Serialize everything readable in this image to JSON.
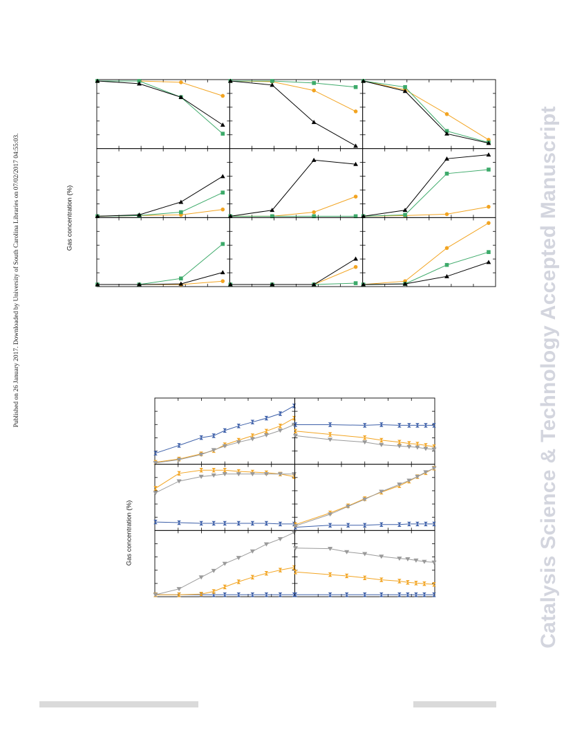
{
  "side_note": "Published on 26 January 2017. Downloaded by University of South Carolina Libraries on 07/02/2017 04:55:03.",
  "watermark": "Catalysis Science & Technology Accepted Manuscript",
  "colors": {
    "black": "#000000",
    "green": "#3daa6a",
    "orange": "#f2a421",
    "blue": "#3b5ea8",
    "gray": "#9a9a9a"
  },
  "chart_data": [
    {
      "type": "line",
      "name": "figure-top",
      "ylabel": "Gas concentration (%)",
      "layout": "3x3 grid of panels, no tick labels visible",
      "x": [
        0,
        1,
        2,
        3
      ],
      "xlim": [
        0,
        3.15
      ],
      "ylim": [
        0,
        1
      ],
      "panels": [
        {
          "row": 0,
          "col": 0,
          "series": [
            {
              "color": "orange",
              "marker": "circle",
              "values": [
                0.99,
                0.99,
                0.97,
                0.77
              ]
            },
            {
              "color": "green",
              "marker": "square",
              "values": [
                0.99,
                0.99,
                0.75,
                0.21
              ]
            },
            {
              "color": "black",
              "marker": "triangle",
              "values": [
                0.99,
                0.95,
                0.75,
                0.34
              ]
            }
          ]
        },
        {
          "row": 0,
          "col": 1,
          "series": [
            {
              "color": "orange",
              "marker": "circle",
              "values": [
                0.99,
                0.98,
                0.85,
                0.54
              ]
            },
            {
              "color": "green",
              "marker": "square",
              "values": [
                0.99,
                0.99,
                0.96,
                0.9
              ]
            },
            {
              "color": "black",
              "marker": "triangle",
              "values": [
                0.99,
                0.93,
                0.38,
                0.03
              ]
            }
          ]
        },
        {
          "row": 0,
          "col": 2,
          "series": [
            {
              "color": "orange",
              "marker": "circle",
              "values": [
                0.99,
                0.86,
                0.5,
                0.12
              ]
            },
            {
              "color": "green",
              "marker": "square",
              "values": [
                0.99,
                0.9,
                0.25,
                0.08
              ]
            },
            {
              "color": "black",
              "marker": "triangle",
              "values": [
                0.99,
                0.84,
                0.21,
                0.07
              ]
            }
          ]
        },
        {
          "row": 1,
          "col": 0,
          "series": [
            {
              "color": "orange",
              "marker": "circle",
              "values": [
                0.01,
                0.02,
                0.03,
                0.11
              ]
            },
            {
              "color": "green",
              "marker": "square",
              "values": [
                0.01,
                0.02,
                0.07,
                0.36
              ]
            },
            {
              "color": "black",
              "marker": "triangle",
              "values": [
                0.01,
                0.03,
                0.22,
                0.6
              ]
            }
          ]
        },
        {
          "row": 1,
          "col": 1,
          "series": [
            {
              "color": "orange",
              "marker": "circle",
              "values": [
                0.01,
                0.01,
                0.07,
                0.3
              ]
            },
            {
              "color": "green",
              "marker": "square",
              "values": [
                0.01,
                0.01,
                0.01,
                0.01
              ]
            },
            {
              "color": "black",
              "marker": "triangle",
              "values": [
                0.01,
                0.1,
                0.84,
                0.78
              ]
            }
          ]
        },
        {
          "row": 1,
          "col": 2,
          "series": [
            {
              "color": "orange",
              "marker": "circle",
              "values": [
                0.01,
                0.02,
                0.04,
                0.15
              ]
            },
            {
              "color": "green",
              "marker": "square",
              "values": [
                0.01,
                0.03,
                0.64,
                0.7
              ]
            },
            {
              "color": "black",
              "marker": "triangle",
              "values": [
                0.01,
                0.1,
                0.86,
                0.92
              ]
            }
          ]
        },
        {
          "row": 2,
          "col": 0,
          "series": [
            {
              "color": "orange",
              "marker": "circle",
              "values": [
                0.02,
                0.02,
                0.02,
                0.07
              ]
            },
            {
              "color": "green",
              "marker": "square",
              "values": [
                0.02,
                0.02,
                0.11,
                0.62
              ]
            },
            {
              "color": "black",
              "marker": "triangle",
              "values": [
                0.02,
                0.02,
                0.03,
                0.2
              ]
            }
          ]
        },
        {
          "row": 2,
          "col": 1,
          "series": [
            {
              "color": "orange",
              "marker": "circle",
              "values": [
                0.02,
                0.02,
                0.02,
                0.28
              ]
            },
            {
              "color": "green",
              "marker": "square",
              "values": [
                0.02,
                0.02,
                0.02,
                0.04
              ]
            },
            {
              "color": "black",
              "marker": "triangle",
              "values": [
                0.02,
                0.02,
                0.02,
                0.4
              ]
            }
          ]
        },
        {
          "row": 2,
          "col": 2,
          "series": [
            {
              "color": "orange",
              "marker": "circle",
              "values": [
                0.02,
                0.07,
                0.56,
                0.93
              ]
            },
            {
              "color": "green",
              "marker": "square",
              "values": [
                0.02,
                0.03,
                0.31,
                0.5
              ]
            },
            {
              "color": "black",
              "marker": "triangle",
              "values": [
                0.02,
                0.03,
                0.14,
                0.35
              ]
            }
          ]
        }
      ]
    },
    {
      "type": "line",
      "name": "figure-bottom",
      "ylabel": "Gas concentration (%)",
      "layout": "3x2 grid of panels, no tick labels visible",
      "ylim": [
        0,
        1
      ],
      "panels": [
        {
          "row": 0,
          "col": 0,
          "xlim": [
            0,
            1
          ],
          "x": [
            0,
            0.17,
            0.33,
            0.42,
            0.5,
            0.6,
            0.7,
            0.8,
            0.9,
            1.0
          ],
          "series": [
            {
              "color": "blue",
              "marker": "hourglass",
              "values": [
                0.16,
                0.28,
                0.4,
                0.43,
                0.51,
                0.58,
                0.64,
                0.7,
                0.77,
                0.89
              ]
            },
            {
              "color": "orange",
              "marker": "hourglass",
              "values": [
                0.02,
                0.07,
                0.15,
                0.2,
                0.29,
                0.36,
                0.43,
                0.5,
                0.58,
                0.7
              ]
            },
            {
              "color": "gray",
              "marker": "triangle-down",
              "values": [
                0.01,
                0.06,
                0.14,
                0.21,
                0.27,
                0.33,
                0.38,
                0.44,
                0.51,
                0.6
              ]
            }
          ]
        },
        {
          "row": 0,
          "col": 1,
          "xlim": [
            0,
            1
          ],
          "x": [
            0,
            0.25,
            0.5,
            0.62,
            0.75,
            0.82,
            0.88,
            0.94,
            1.0
          ],
          "series": [
            {
              "color": "blue",
              "marker": "hourglass",
              "values": [
                0.6,
                0.6,
                0.59,
                0.6,
                0.59,
                0.59,
                0.59,
                0.59,
                0.59
              ]
            },
            {
              "color": "orange",
              "marker": "hourglass",
              "values": [
                0.5,
                0.45,
                0.4,
                0.36,
                0.33,
                0.31,
                0.3,
                0.28,
                0.26
              ]
            },
            {
              "color": "gray",
              "marker": "triangle-down",
              "values": [
                0.43,
                0.37,
                0.33,
                0.29,
                0.27,
                0.26,
                0.25,
                0.23,
                0.22
              ]
            }
          ]
        },
        {
          "row": 1,
          "col": 0,
          "xlim": [
            0,
            1
          ],
          "x": [
            0,
            0.17,
            0.33,
            0.42,
            0.5,
            0.6,
            0.7,
            0.8,
            0.9,
            1.0
          ],
          "series": [
            {
              "color": "blue",
              "marker": "hourglass",
              "values": [
                0.12,
                0.11,
                0.1,
                0.1,
                0.1,
                0.1,
                0.1,
                0.1,
                0.09,
                0.09
              ]
            },
            {
              "color": "orange",
              "marker": "hourglass",
              "values": [
                0.64,
                0.87,
                0.92,
                0.92,
                0.92,
                0.9,
                0.89,
                0.88,
                0.86,
                0.82
              ]
            },
            {
              "color": "gray",
              "marker": "triangle-down",
              "values": [
                0.57,
                0.75,
                0.82,
                0.84,
                0.86,
                0.86,
                0.86,
                0.86,
                0.86,
                0.86
              ]
            }
          ]
        },
        {
          "row": 1,
          "col": 1,
          "xlim": [
            0,
            1
          ],
          "x": [
            0,
            0.25,
            0.38,
            0.5,
            0.62,
            0.75,
            0.82,
            0.88,
            0.94,
            1.0
          ],
          "series": [
            {
              "color": "blue",
              "marker": "hourglass",
              "values": [
                0.04,
                0.07,
                0.07,
                0.07,
                0.08,
                0.08,
                0.09,
                0.09,
                0.09,
                0.09
              ]
            },
            {
              "color": "orange",
              "marker": "hourglass",
              "values": [
                0.08,
                0.26,
                0.37,
                0.48,
                0.58,
                0.68,
                0.75,
                0.82,
                0.88,
                0.95
              ]
            },
            {
              "color": "gray",
              "marker": "triangle-down",
              "values": [
                0.06,
                0.24,
                0.36,
                0.47,
                0.59,
                0.7,
                0.76,
                0.82,
                0.89,
                0.95
              ]
            }
          ]
        },
        {
          "row": 2,
          "col": 0,
          "xlim": [
            0,
            1
          ],
          "x": [
            0,
            0.17,
            0.33,
            0.42,
            0.5,
            0.6,
            0.7,
            0.8,
            0.9,
            1.0
          ],
          "series": [
            {
              "color": "blue",
              "marker": "hourglass",
              "values": [
                0.02,
                0.02,
                0.02,
                0.02,
                0.02,
                0.02,
                0.02,
                0.02,
                0.02,
                0.02
              ]
            },
            {
              "color": "orange",
              "marker": "hourglass",
              "values": [
                0.02,
                0.02,
                0.03,
                0.07,
                0.14,
                0.22,
                0.29,
                0.35,
                0.4,
                0.44
              ]
            },
            {
              "color": "gray",
              "marker": "triangle-down",
              "values": [
                0.02,
                0.11,
                0.29,
                0.39,
                0.5,
                0.59,
                0.69,
                0.8,
                0.88,
                0.98
              ]
            }
          ]
        },
        {
          "row": 2,
          "col": 1,
          "xlim": [
            0,
            1
          ],
          "x": [
            0,
            0.25,
            0.37,
            0.5,
            0.62,
            0.75,
            0.81,
            0.87,
            0.93,
            1.0
          ],
          "series": [
            {
              "color": "blue",
              "marker": "hourglass",
              "values": [
                0.02,
                0.02,
                0.02,
                0.02,
                0.02,
                0.02,
                0.02,
                0.02,
                0.02,
                0.02
              ]
            },
            {
              "color": "orange",
              "marker": "hourglass",
              "values": [
                0.37,
                0.33,
                0.31,
                0.28,
                0.25,
                0.23,
                0.21,
                0.2,
                0.19,
                0.18
              ]
            },
            {
              "color": "gray",
              "marker": "triangle-down",
              "values": [
                0.74,
                0.73,
                0.68,
                0.65,
                0.61,
                0.58,
                0.57,
                0.55,
                0.53,
                0.52
              ]
            }
          ]
        }
      ]
    }
  ]
}
